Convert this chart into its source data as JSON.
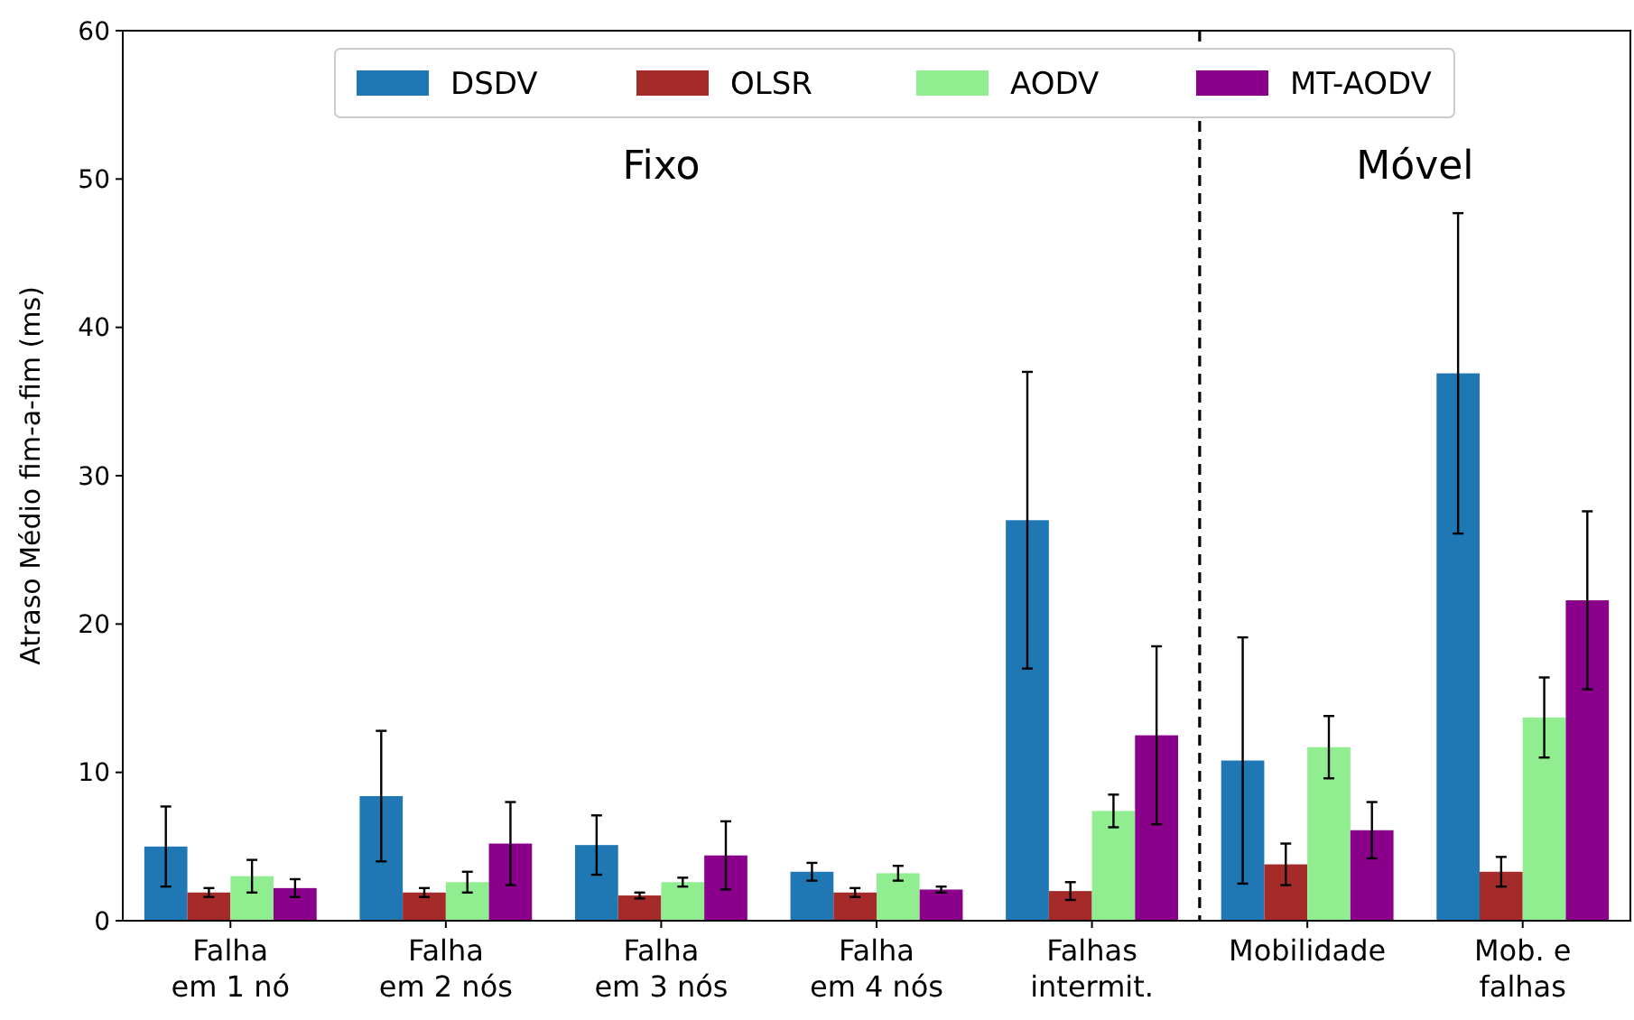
{
  "chart_data": {
    "type": "bar",
    "ylabel": "Atraso Médio fim-a-fim (ms)",
    "categories": [
      "Falha\nem 1 nó",
      "Falha\nem 2 nós",
      "Falha\nem 3 nós",
      "Falha\nem 4 nós",
      "Falhas\nintermit.",
      "Mobilidade",
      "Mob. e\nfalhas"
    ],
    "series": [
      {
        "name": "DSDV",
        "color": "#1f77b4",
        "values": [
          5.0,
          8.4,
          5.1,
          3.3,
          27.0,
          10.8,
          36.9
        ],
        "errors": [
          2.7,
          4.4,
          2.0,
          0.6,
          10.0,
          8.3,
          10.8
        ]
      },
      {
        "name": "OLSR",
        "color": "#a52a2a",
        "values": [
          1.9,
          1.9,
          1.7,
          1.9,
          2.0,
          3.8,
          3.3
        ],
        "errors": [
          0.3,
          0.3,
          0.2,
          0.3,
          0.6,
          1.4,
          1.0
        ]
      },
      {
        "name": "AODV",
        "color": "#90ee90",
        "values": [
          3.0,
          2.6,
          2.6,
          3.2,
          7.4,
          11.7,
          13.7
        ],
        "errors": [
          1.1,
          0.7,
          0.3,
          0.5,
          1.1,
          2.1,
          2.7
        ]
      },
      {
        "name": "MT-AODV",
        "color": "#8b008b",
        "values": [
          2.2,
          5.2,
          4.4,
          2.1,
          12.5,
          6.1,
          21.6
        ],
        "errors": [
          0.6,
          2.8,
          2.3,
          0.2,
          6.0,
          1.9,
          6.0
        ]
      }
    ],
    "ylim": [
      0,
      60
    ],
    "yticks": [
      0,
      10,
      20,
      30,
      40,
      50,
      60
    ],
    "annotations": [
      "Fixo",
      "Móvel"
    ],
    "legend": "top",
    "grid": false
  }
}
